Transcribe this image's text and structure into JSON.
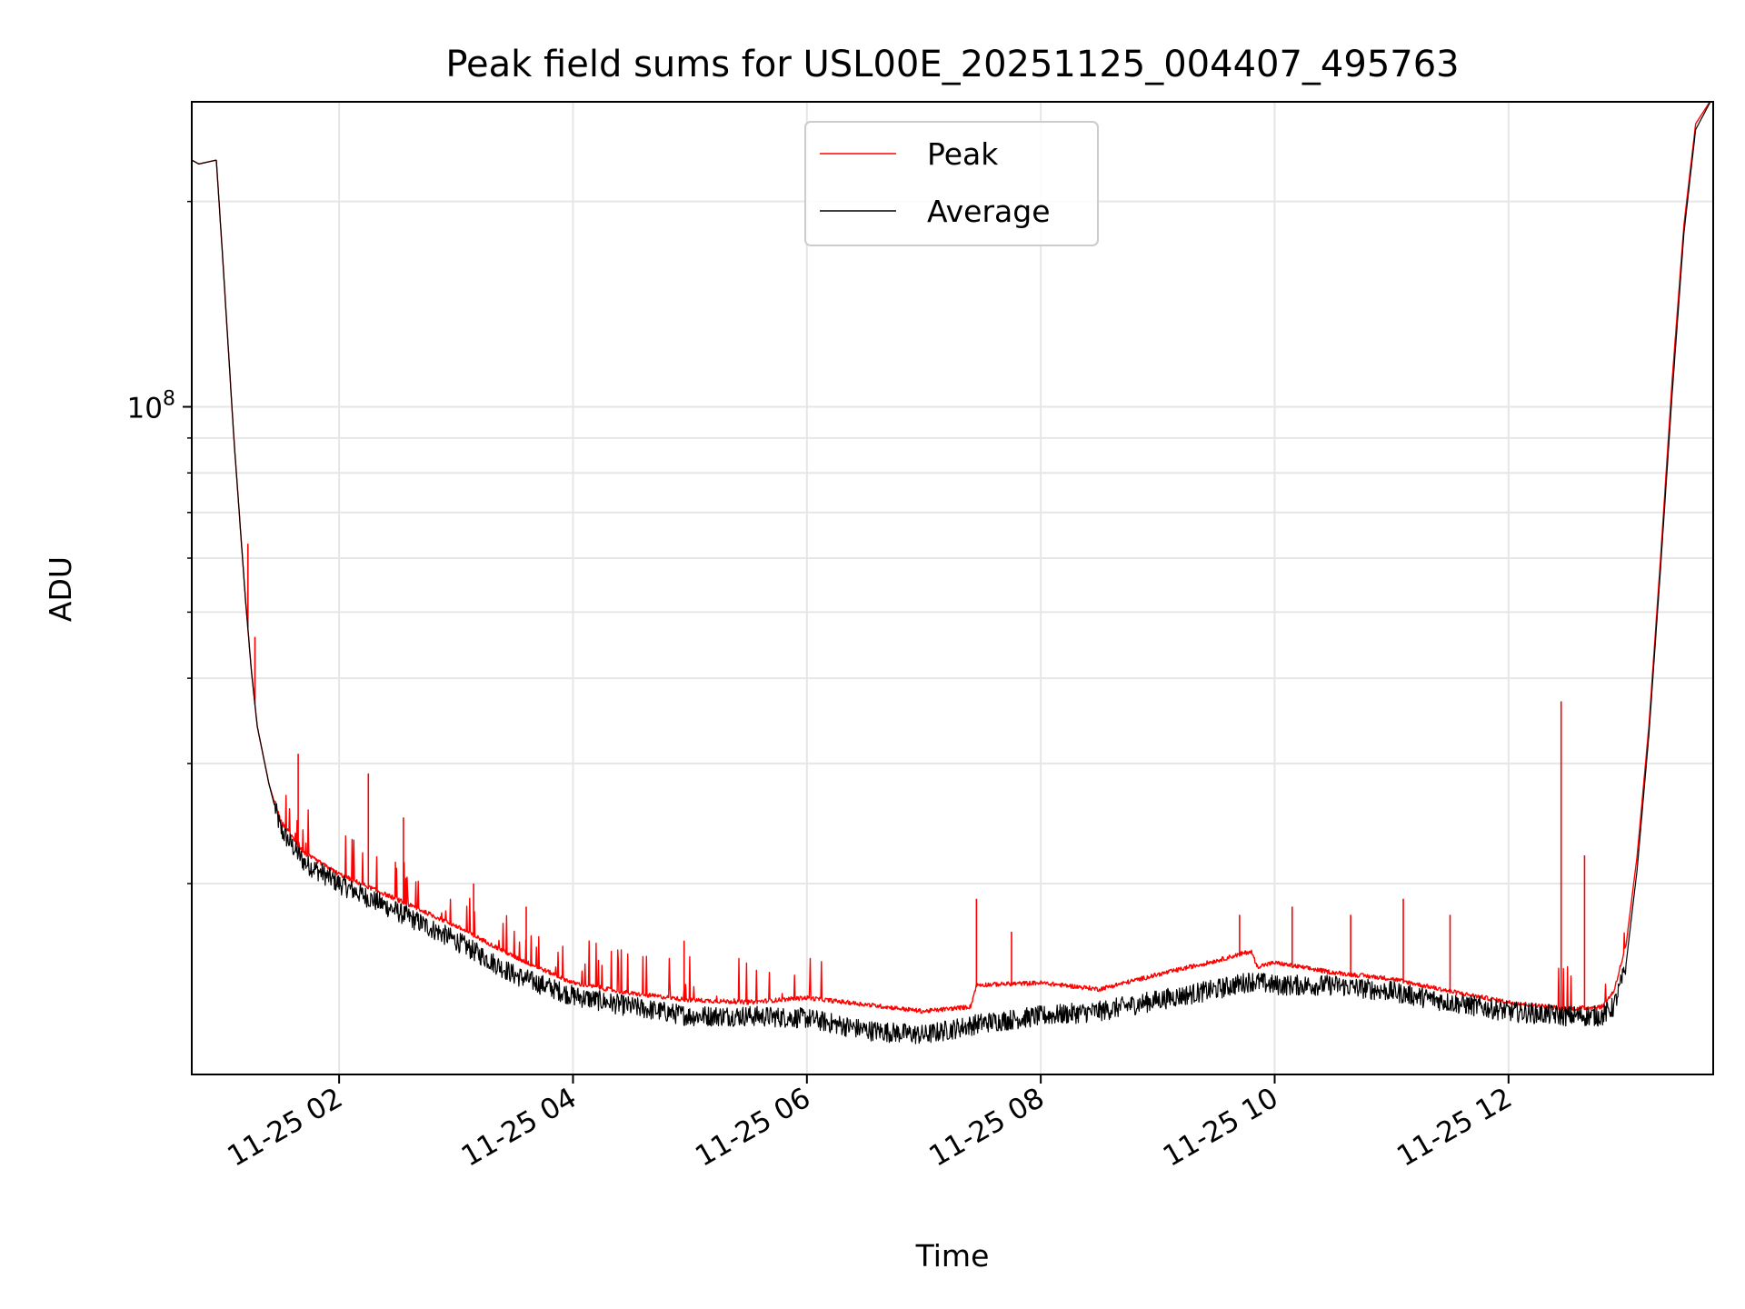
{
  "chart_data": {
    "type": "line",
    "title": "Peak field sums for USL00E_20251125_004407_495763",
    "xlabel": "Time",
    "ylabel": "ADU",
    "yscale": "log",
    "xlim_hours": [
      0.74,
      13.75
    ],
    "ylim": [
      10500000,
      280000000
    ],
    "x_tick_hours": [
      2,
      4,
      6,
      8,
      10,
      12
    ],
    "x_tick_labels": [
      "11-25 02",
      "11-25 04",
      "11-25 06",
      "11-25 08",
      "11-25 10",
      "11-25 12"
    ],
    "y_major_ticks": [
      100000000
    ],
    "y_major_tick_labels": [
      "10",
      "8"
    ],
    "y_minor_ticks": [
      20000000,
      30000000,
      40000000,
      50000000,
      60000000,
      70000000,
      80000000,
      90000000,
      200000000
    ],
    "grid": true,
    "legend_position": "upper-center",
    "series": [
      {
        "name": "Peak",
        "color": "#ff0000",
        "x_hours": [
          0.74,
          0.8,
          0.95,
          1.0,
          1.1,
          1.2,
          1.25,
          1.3,
          1.4,
          1.5,
          1.7,
          2.0,
          2.5,
          3.0,
          3.5,
          4.0,
          4.5,
          5.0,
          5.5,
          6.0,
          6.5,
          7.0,
          7.4,
          7.45,
          8.0,
          8.5,
          9.0,
          9.5,
          9.8,
          9.85,
          10.0,
          10.5,
          11.0,
          11.5,
          12.0,
          12.5,
          12.8,
          12.9,
          13.0,
          13.1,
          13.2,
          13.3,
          13.4,
          13.5,
          13.6,
          13.75
        ],
        "values": [
          230000000,
          227000000,
          230000000,
          170000000,
          90000000,
          52000000,
          41000000,
          34000000,
          28000000,
          24500000,
          22000000,
          20500000,
          18800000,
          17200000,
          15500000,
          14200000,
          13700000,
          13400000,
          13300000,
          13500000,
          13200000,
          12900000,
          13100000,
          14100000,
          14200000,
          13900000,
          14600000,
          15300000,
          15800000,
          15000000,
          15200000,
          14700000,
          14400000,
          13800000,
          13300000,
          13000000,
          13100000,
          13800000,
          16000000,
          22000000,
          34000000,
          60000000,
          110000000,
          185000000,
          260000000,
          285000000
        ],
        "spikes": [
          [
            1.22,
            63000000
          ],
          [
            1.28,
            46000000
          ],
          [
            1.65,
            31000000
          ],
          [
            2.25,
            29000000
          ],
          [
            2.55,
            25000000
          ],
          [
            3.15,
            20000000
          ],
          [
            3.6,
            18500000
          ],
          [
            4.95,
            16500000
          ],
          [
            7.45,
            19000000
          ],
          [
            7.75,
            17000000
          ],
          [
            9.7,
            18000000
          ],
          [
            10.15,
            18500000
          ],
          [
            10.65,
            18000000
          ],
          [
            11.1,
            19000000
          ],
          [
            11.5,
            18000000
          ],
          [
            12.45,
            37000000
          ],
          [
            12.65,
            22000000
          ]
        ]
      },
      {
        "name": "Average",
        "color": "#000000",
        "x_hours": [
          0.74,
          0.8,
          0.95,
          1.0,
          1.1,
          1.2,
          1.25,
          1.3,
          1.4,
          1.5,
          1.7,
          2.0,
          2.5,
          3.0,
          3.5,
          4.0,
          4.5,
          5.0,
          5.5,
          6.0,
          6.5,
          7.0,
          7.5,
          8.0,
          8.5,
          9.0,
          9.5,
          9.8,
          10.0,
          10.5,
          11.0,
          11.5,
          12.0,
          12.5,
          12.8,
          12.9,
          13.0,
          13.1,
          13.2,
          13.3,
          13.4,
          13.5,
          13.6,
          13.75
        ],
        "values": [
          230000000,
          227000000,
          230000000,
          170000000,
          90000000,
          52000000,
          41000000,
          34000000,
          28000000,
          24000000,
          21500000,
          20000000,
          18200000,
          16500000,
          14700000,
          13700000,
          13200000,
          12800000,
          12800000,
          12700000,
          12200000,
          12000000,
          12500000,
          12800000,
          13000000,
          13500000,
          14000000,
          14400000,
          14200000,
          14200000,
          13900000,
          13400000,
          13000000,
          12800000,
          12800000,
          13200000,
          15000000,
          21000000,
          33000000,
          58000000,
          105000000,
          180000000,
          255000000,
          285000000
        ],
        "noise_amplitude": 0.035
      }
    ]
  }
}
